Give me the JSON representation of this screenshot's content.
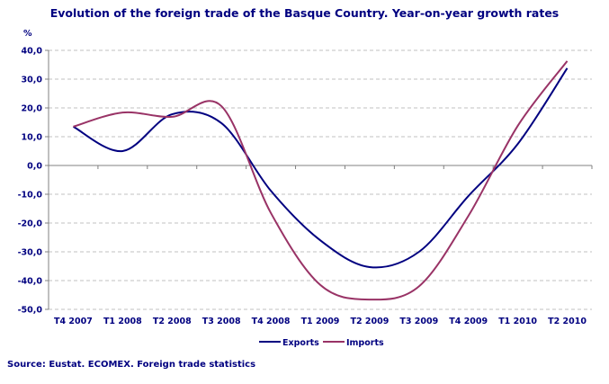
{
  "chart_data": {
    "type": "line",
    "title": "Evolution of the foreign trade of the Basque Country. Year-on-year growth rates",
    "ylabel": "%",
    "xlabel": "",
    "categories": [
      "T4 2007",
      "T1 2008",
      "T2 2008",
      "T3 2008",
      "T4 2008",
      "T1 2009",
      "T2 2009",
      "T3 2009",
      "T4 2009",
      "T1 2010",
      "T2 2010"
    ],
    "ylim": [
      -50,
      40
    ],
    "yticks": [
      "40,0",
      "30,0",
      "20,0",
      "10,0",
      "0,0",
      "-10,0",
      "-20,0",
      "-30,0",
      "-40,0",
      "-50,0"
    ],
    "grid": true,
    "legend": "bottom",
    "series": [
      {
        "name": "Exports",
        "color": "#000080",
        "values": [
          13.5,
          5.0,
          17.8,
          14.7,
          -8.8,
          -26.0,
          -35.3,
          -30.0,
          -10.6,
          7.5,
          33.8
        ]
      },
      {
        "name": "Imports",
        "color": "#993366",
        "values": [
          13.5,
          18.4,
          16.9,
          20.6,
          -16.5,
          -41.5,
          -46.6,
          -42.0,
          -17.5,
          13.8,
          36.3
        ]
      }
    ],
    "source": "Source: Eustat. ECOMEX. Foreign trade statistics"
  }
}
